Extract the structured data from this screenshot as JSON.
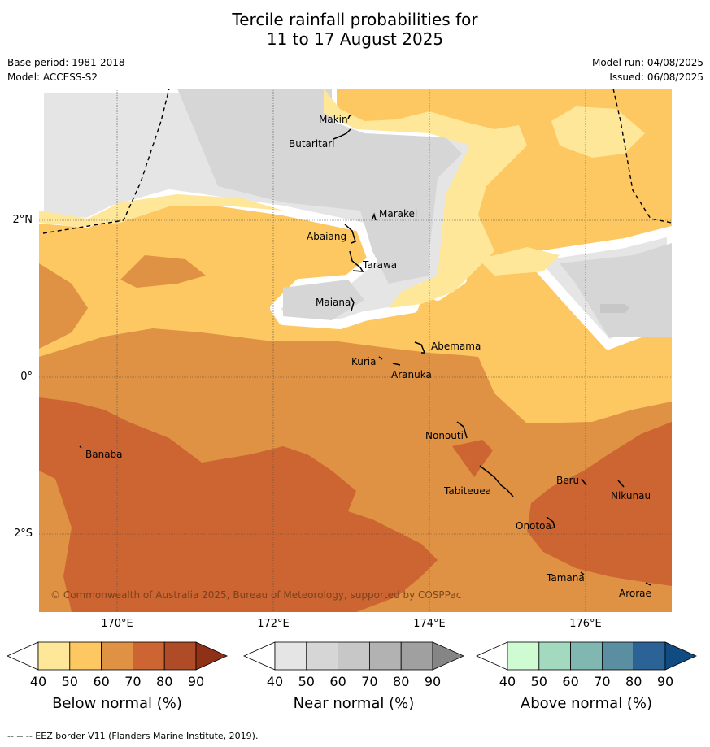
{
  "title": {
    "line1": "Tercile rainfall probabilities for",
    "line2": "11 to 17 August 2025"
  },
  "meta": {
    "base_period": "Base period: 1981-2018",
    "model": "Model: ACCESS-S2",
    "model_run": "Model run: 04/08/2025",
    "issued": "Issued: 06/08/2025"
  },
  "axes": {
    "lat_labels": [
      "2°N",
      "0°",
      "2°S"
    ],
    "lon_labels": [
      "170°E",
      "172°E",
      "174°E",
      "176°E"
    ]
  },
  "places": [
    "Makin",
    "Butaritari",
    "Marakei",
    "Abaiang",
    "Tarawa",
    "Maiana",
    "Abemama",
    "Kuria",
    "Aranuka",
    "Nonouti",
    "Banaba",
    "Beru",
    "Nikunau",
    "Tabiteuea",
    "Onotoa",
    "Tamana",
    "Arorae"
  ],
  "copyright": "© Commonwealth of Australia 2025, Bureau of Meteorology, supported by COSPPac",
  "legends": [
    {
      "title": "Below normal (%)",
      "ticks": [
        "40",
        "50",
        "60",
        "70",
        "80",
        "90"
      ],
      "colors": [
        "#fee799",
        "#fdc762",
        "#df9243",
        "#cc6531",
        "#b04b27",
        "#8e3116"
      ]
    },
    {
      "title": "Near normal (%)",
      "ticks": [
        "40",
        "50",
        "60",
        "70",
        "80",
        "90"
      ],
      "colors": [
        "#e5e5e5",
        "#d6d6d6",
        "#c7c7c7",
        "#b2b2b2",
        "#a0a0a0",
        "#858585"
      ]
    },
    {
      "title": "Above normal (%)",
      "ticks": [
        "40",
        "50",
        "60",
        "70",
        "80",
        "90"
      ],
      "colors": [
        "#cefbd2",
        "#a3d9be",
        "#80b7b0",
        "#5b8ea0",
        "#2c6396",
        "#104b82"
      ]
    }
  ],
  "footnote": "--  --  -- EEZ border V11 (Flanders Marine Institute, 2019)."
}
